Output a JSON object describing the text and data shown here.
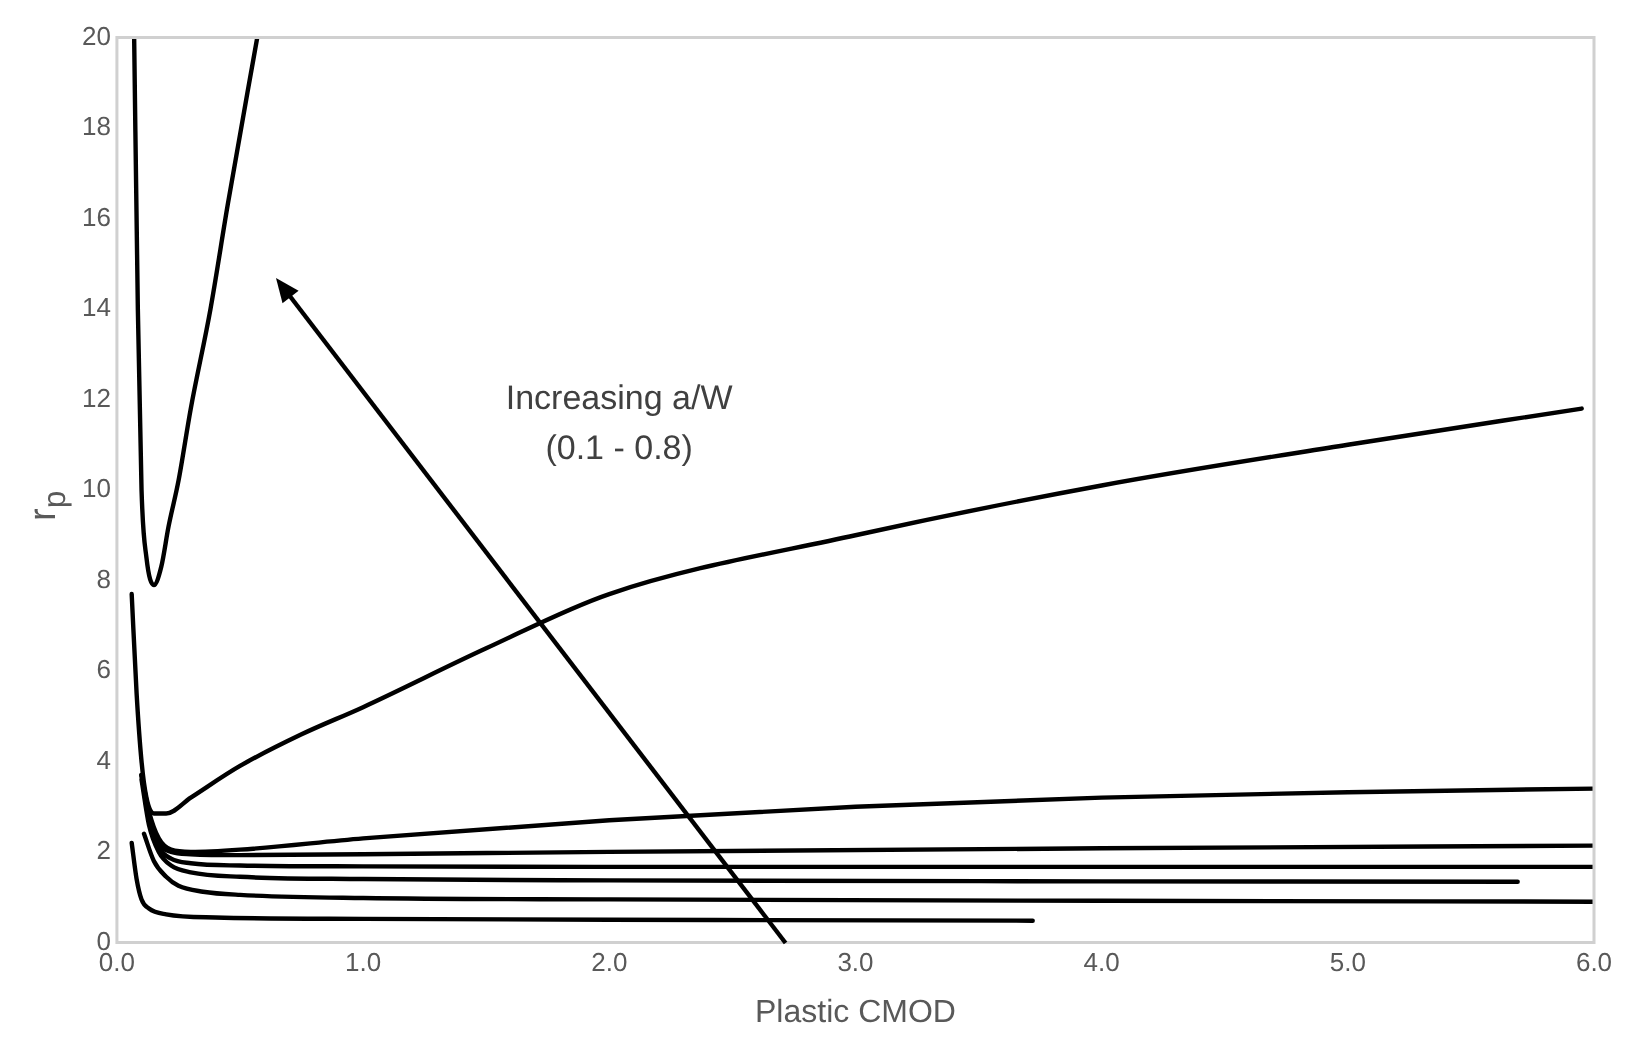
{
  "chart_data": {
    "type": "line",
    "xlabel": "Plastic CMOD",
    "ylabel": "r$_{p}$",
    "annotations": [
      "Increasing a/W\n(0.1 - 0.8)"
    ],
    "xlim": [
      0,
      6
    ],
    "xticks": [
      {
        "value": 0,
        "label": "0.0"
      },
      {
        "value": 1,
        "label": "1.0"
      },
      {
        "value": 2,
        "label": "2.0"
      },
      {
        "value": 3,
        "label": "3.0"
      },
      {
        "value": 4,
        "label": "4.0"
      },
      {
        "value": 5,
        "label": "5.0"
      },
      {
        "value": 6,
        "label": "6.0"
      }
    ],
    "ylim": [
      0,
      20
    ],
    "yticks": [
      0,
      2,
      4,
      6,
      8,
      10,
      12,
      14,
      16,
      18,
      20
    ],
    "grid": false,
    "legend": false,
    "marker": "none",
    "line_style": "solid",
    "series": [
      {
        "color": "#000000",
        "x": [
          0.06,
          0.08,
          0.1,
          0.13,
          0.2,
          0.4,
          1,
          2,
          3.72
        ],
        "values": [
          2.2,
          1.4,
          0.95,
          0.75,
          0.62,
          0.55,
          0.52,
          0.5,
          0.48
        ]
      },
      {
        "color": "#000000",
        "x": [
          0.11,
          0.15,
          0.2,
          0.25,
          0.35,
          0.5,
          1,
          2,
          4,
          6
        ],
        "values": [
          2.4,
          1.8,
          1.45,
          1.25,
          1.12,
          1.05,
          0.98,
          0.95,
          0.92,
          0.9
        ]
      },
      {
        "color": "#000000",
        "x": [
          0.1,
          0.13,
          0.17,
          0.22,
          0.3,
          0.5,
          1,
          2,
          4,
          5.69
        ],
        "values": [
          3.6,
          2.6,
          2,
          1.7,
          1.55,
          1.45,
          1.4,
          1.37,
          1.35,
          1.34
        ]
      },
      {
        "color": "#000000",
        "x": [
          0.1,
          0.13,
          0.17,
          0.22,
          0.3,
          0.5,
          1,
          2,
          4,
          6
        ],
        "values": [
          3.7,
          2.7,
          2.1,
          1.85,
          1.75,
          1.7,
          1.68,
          1.67,
          1.67,
          1.67
        ]
      },
      {
        "color": "#000000",
        "x": [
          0.1,
          0.13,
          0.17,
          0.22,
          0.3,
          0.5,
          1,
          2,
          4,
          6
        ],
        "values": [
          3.7,
          2.8,
          2.2,
          2,
          1.95,
          1.93,
          1.95,
          2,
          2.08,
          2.14
        ]
      },
      {
        "color": "#000000",
        "x": [
          0.1,
          0.13,
          0.17,
          0.22,
          0.3,
          0.5,
          1,
          2,
          3,
          4,
          5,
          6
        ],
        "values": [
          3.7,
          2.9,
          2.3,
          2.05,
          2,
          2.05,
          2.3,
          2.7,
          3,
          3.2,
          3.32,
          3.4
        ]
      },
      {
        "color": "#000000",
        "x": [
          0.06,
          0.08,
          0.1,
          0.12,
          0.15,
          0.2,
          0.3,
          0.5,
          0.75,
          1,
          1.5,
          2,
          3,
          4,
          5,
          5.95
        ],
        "values": [
          7.7,
          5.5,
          4,
          3.2,
          2.85,
          2.85,
          3.2,
          3.9,
          4.6,
          5.2,
          6.5,
          7.7,
          9,
          10.1,
          11,
          11.8
        ]
      },
      {
        "color": "#000000",
        "x": [
          0.07,
          0.085,
          0.1,
          0.12,
          0.15,
          0.18,
          0.21,
          0.25,
          0.3,
          0.38,
          0.45,
          0.57
        ],
        "values": [
          20,
          14,
          10,
          8.5,
          7.9,
          8.3,
          9.2,
          10.2,
          11.8,
          14,
          16.3,
          20
        ]
      }
    ]
  }
}
